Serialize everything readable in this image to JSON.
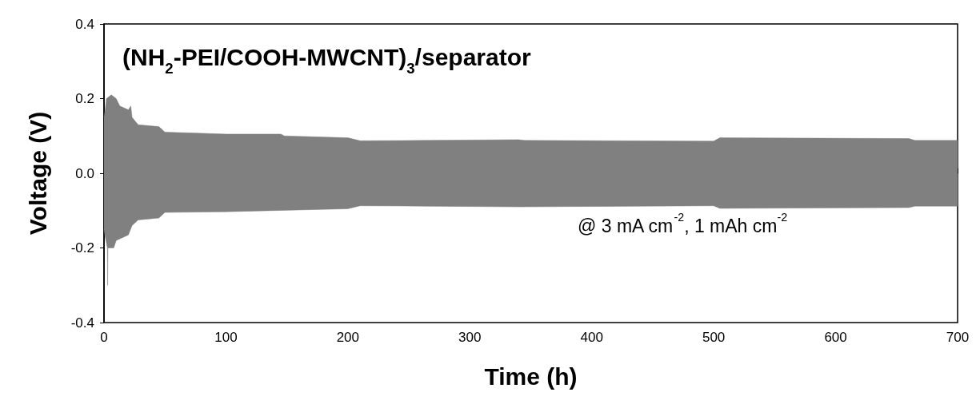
{
  "chart_data": {
    "type": "area",
    "title": "(NH$_{2}$-PEI/COOH-MWCNT)$_{3}$/separator",
    "xlabel": "Time (h)",
    "ylabel": "Voltage (V)",
    "annotations": [
      "@ 3 mA cm$^{-2}$, 1 mAh cm$^{-2}$"
    ],
    "series": [
      {
        "color": "#808080",
        "x": [
          0,
          1,
          2,
          6,
          10,
          13,
          20,
          22,
          23,
          28,
          45,
          50,
          100,
          145,
          148,
          200,
          210,
          260,
          340,
          345,
          500,
          505,
          660,
          665,
          700
        ],
        "values": [
          0.15,
          0.17,
          0.2,
          0.21,
          0.2,
          0.18,
          0.17,
          0.18,
          0.15,
          0.13,
          0.125,
          0.11,
          0.105,
          0.105,
          0.1,
          0.095,
          0.087,
          0.088,
          0.09,
          0.088,
          0.086,
          0.095,
          0.093,
          0.088,
          0.088
        ]
      },
      {
        "color": "#808080",
        "x": [
          0,
          1,
          2.8,
          3,
          3.2,
          8,
          10,
          20,
          23,
          28,
          45,
          50,
          100,
          200,
          210,
          260,
          340,
          500,
          505,
          660,
          665,
          700
        ],
        "values": [
          -0.15,
          -0.17,
          -0.2,
          -0.3,
          -0.2,
          -0.2,
          -0.18,
          -0.165,
          -0.14,
          -0.125,
          -0.12,
          -0.105,
          -0.103,
          -0.095,
          -0.087,
          -0.088,
          -0.09,
          -0.087,
          -0.094,
          -0.092,
          -0.088,
          -0.088
        ]
      }
    ],
    "xlim": [
      0,
      700
    ],
    "xticks": [
      0,
      100,
      200,
      300,
      400,
      500,
      600,
      700
    ],
    "ylim": [
      -0.4,
      0.4
    ],
    "yticks": [
      -0.4,
      -0.2,
      {
        "value": 0,
        "label": "0.0"
      },
      0.2,
      0.4
    ]
  }
}
